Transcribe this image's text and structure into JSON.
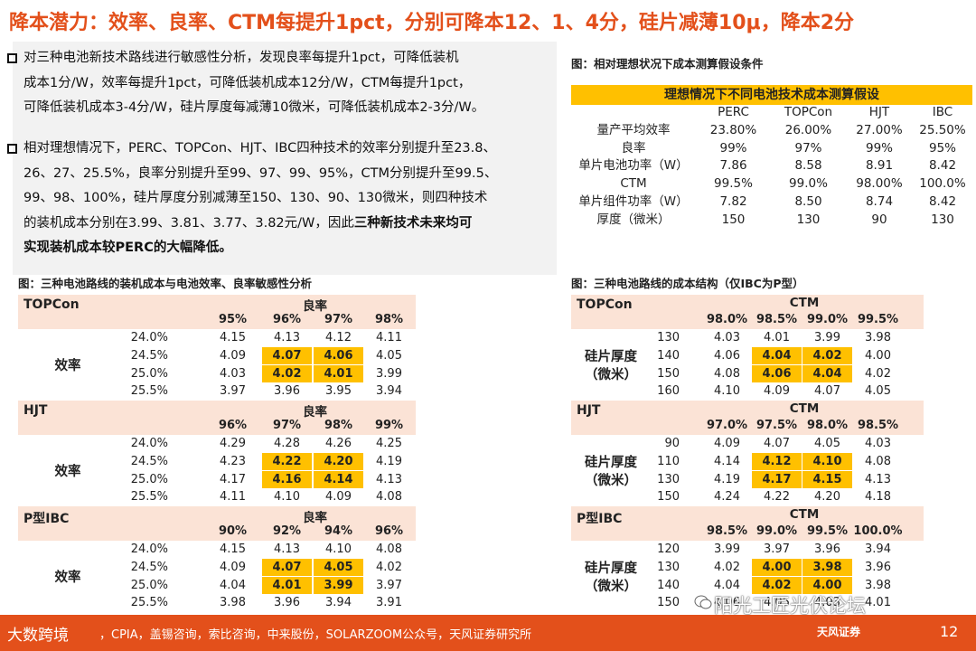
{
  "title": "降本潜力：效率、良率、CTM每提升1pct，分别可降本12、1、4分，硅片减薄10μ，降本2分",
  "bullets": [
    {
      "lines": [
        "对三种电池新技术路线进行敏感性分析，发现良率每提升1pct，可降低装机",
        "成本1分/W，效率每提升1pct，可降低装机成本12分/W，CTM每提升1pct，",
        "可降低装机成本3-4分/W，硅片厚度每减薄10微米，可降低装机成本2-3分/W。"
      ]
    },
    {
      "lines": [
        "相对理想情况下，PERC、TOPCon、HJT、IBC四种技术的效率分别提升至23.8、",
        "26、27、25.5%，良率分别提升至99、97、99、95%，CTM分别提升至99.5、",
        "99、98、100%，硅片厚度分别减薄至150、130、90、130微米，则四种技术",
        "的装机成本分别在3.99、3.81、3.77、3.82元/W，因此"
      ],
      "bold_tail": "三种新技术未来均可",
      "bold_line": "实现装机成本较PERC的大幅降低。"
    }
  ],
  "captions": {
    "assumptions": "图：相对理想状况下成本测算假设条件",
    "sensitivity": "图：三种电池路线的装机成本与电池效率、良率敏感性分析",
    "structure": "图：三种电池路线的成本结构（仅IBC为P型）"
  },
  "assumptions": {
    "header": "理想情况下不同电池技术成本测算假设",
    "columns": [
      "",
      "PERC",
      "TOPCon",
      "HJT",
      "IBC"
    ],
    "rows": [
      [
        "量产平均效率",
        "23.80%",
        "26.00%",
        "27.00%",
        "25.50%"
      ],
      [
        "良率",
        "99%",
        "97%",
        "99%",
        "95%"
      ],
      [
        "单片电池功率（W）",
        "7.86",
        "8.58",
        "8.91",
        "8.42"
      ],
      [
        "CTM",
        "99.5%",
        "99.0%",
        "98.00%",
        "100.0%"
      ],
      [
        "单片组件功率（W）",
        "7.82",
        "8.50",
        "8.74",
        "8.42"
      ],
      [
        "厚度（微米）",
        "150",
        "130",
        "90",
        "130"
      ]
    ]
  },
  "left_tables": [
    {
      "name": "TOPCon",
      "metric": "良率",
      "group_label": "效率",
      "cols": [
        "95%",
        "96%",
        "97%",
        "98%"
      ],
      "row_labels": [
        "24.0%",
        "24.5%",
        "25.0%",
        "25.5%"
      ],
      "values": [
        [
          "4.15",
          "4.13",
          "4.12",
          "4.11"
        ],
        [
          "4.09",
          "4.07",
          "4.06",
          "4.05"
        ],
        [
          "4.03",
          "4.02",
          "4.01",
          "3.99"
        ],
        [
          "3.97",
          "3.96",
          "3.95",
          "3.94"
        ]
      ]
    },
    {
      "name": "HJT",
      "metric": "良率",
      "group_label": "效率",
      "cols": [
        "96%",
        "97%",
        "98%",
        "99%"
      ],
      "row_labels": [
        "24.0%",
        "24.5%",
        "25.0%",
        "25.5%"
      ],
      "values": [
        [
          "4.29",
          "4.28",
          "4.26",
          "4.25"
        ],
        [
          "4.23",
          "4.22",
          "4.20",
          "4.19"
        ],
        [
          "4.17",
          "4.16",
          "4.14",
          "4.13"
        ],
        [
          "4.11",
          "4.10",
          "4.09",
          "4.08"
        ]
      ]
    },
    {
      "name": "P型IBC",
      "metric": "良率",
      "group_label": "效率",
      "cols": [
        "90%",
        "92%",
        "94%",
        "96%"
      ],
      "row_labels": [
        "24.0%",
        "24.5%",
        "25.0%",
        "25.5%"
      ],
      "values": [
        [
          "4.15",
          "4.13",
          "4.10",
          "4.08"
        ],
        [
          "4.09",
          "4.07",
          "4.05",
          "4.02"
        ],
        [
          "4.04",
          "4.01",
          "3.99",
          "3.97"
        ],
        [
          "3.98",
          "3.96",
          "3.94",
          "3.91"
        ]
      ]
    }
  ],
  "right_tables": [
    {
      "name": "TOPCon",
      "metric": "CTM",
      "group_label": "硅片厚度\n（微米）",
      "cols": [
        "98.0%",
        "98.5%",
        "99.0%",
        "99.5%"
      ],
      "row_labels": [
        "130",
        "140",
        "150",
        "160"
      ],
      "values": [
        [
          "4.03",
          "4.01",
          "3.99",
          "3.98"
        ],
        [
          "4.06",
          "4.04",
          "4.02",
          "4.00"
        ],
        [
          "4.08",
          "4.06",
          "4.04",
          "4.02"
        ],
        [
          "4.10",
          "4.09",
          "4.07",
          "4.05"
        ]
      ]
    },
    {
      "name": "HJT",
      "metric": "CTM",
      "group_label": "硅片厚度\n（微米）",
      "cols": [
        "97.0%",
        "97.5%",
        "98.0%",
        "98.5%"
      ],
      "row_labels": [
        "90",
        "110",
        "130",
        "150"
      ],
      "values": [
        [
          "4.09",
          "4.07",
          "4.05",
          "4.03"
        ],
        [
          "4.14",
          "4.12",
          "4.10",
          "4.08"
        ],
        [
          "4.19",
          "4.17",
          "4.15",
          "4.13"
        ],
        [
          "4.24",
          "4.22",
          "4.20",
          "4.18"
        ]
      ]
    },
    {
      "name": "P型IBC",
      "metric": "CTM",
      "group_label": "硅片厚度\n（微米）",
      "cols": [
        "98.5%",
        "99.0%",
        "99.5%",
        "100.0%"
      ],
      "row_labels": [
        "120",
        "130",
        "140",
        "150"
      ],
      "values": [
        [
          "3.99",
          "3.97",
          "3.96",
          "3.94"
        ],
        [
          "4.02",
          "4.00",
          "3.98",
          "3.96"
        ],
        [
          "4.04",
          "4.02",
          "4.00",
          "3.98"
        ],
        [
          "4.06",
          "4.05",
          "4.03",
          "4.01"
        ]
      ]
    }
  ],
  "footer": {
    "logo_text": "大数跨境",
    "source": "，CPIA，盖锡咨询，索比咨询，中来股份，SOLARZOOM公众号，天风证券研究所",
    "brand": "天风证券",
    "page": "12"
  },
  "watermark": "阳光工匠光伏论坛",
  "colors": {
    "accent": "#e3501b",
    "highlight": "#ffc000",
    "band": "#fbe3d6"
  }
}
